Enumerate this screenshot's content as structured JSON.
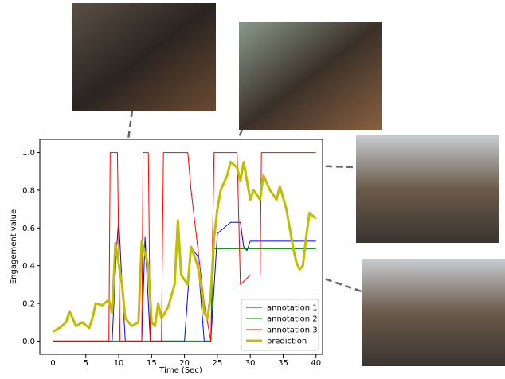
{
  "chart_data": {
    "type": "line",
    "x_label": "Time (Sec)",
    "y_label": "Engagement value",
    "xlim": [
      -2,
      41
    ],
    "ylim": [
      -0.07,
      1.07
    ],
    "xticks": [
      0,
      5,
      10,
      15,
      20,
      25,
      30,
      35,
      40
    ],
    "yticks": [
      {
        "value": 0,
        "label": "0.0"
      },
      0.2,
      0.4,
      0.6,
      0.8,
      {
        "value": 1,
        "label": "1.0"
      }
    ],
    "grid": false,
    "legend": "lower right",
    "series": [
      {
        "name": "annotation 1",
        "color": "#0000ff",
        "width": 1,
        "x": [
          0,
          9,
          9.6,
          10,
          10.5,
          11,
          13.5,
          14,
          14.8,
          20,
          21,
          22,
          23,
          24,
          25,
          27,
          28.5,
          29,
          29.5,
          30,
          40
        ],
        "values": [
          0,
          0,
          0.45,
          0.65,
          0.3,
          0,
          0,
          0.55,
          0,
          0,
          0.5,
          0.45,
          0,
          0,
          0.57,
          0.63,
          0.63,
          0.5,
          0.48,
          0.53,
          0.53
        ]
      },
      {
        "name": "annotation 2",
        "color": "#008000",
        "width": 1,
        "x": [
          0,
          24,
          24.5,
          40
        ],
        "values": [
          0,
          0,
          0.49,
          0.49
        ]
      },
      {
        "name": "annotation 3",
        "color": "#ff0000",
        "width": 1,
        "x": [
          0,
          8.5,
          8.7,
          9.8,
          10.2,
          13.5,
          13.7,
          14.5,
          14.8,
          16.5,
          16.8,
          20.5,
          21,
          22,
          23,
          24,
          24.5,
          28,
          28.5,
          30,
          31.5,
          31.7,
          40
        ],
        "values": [
          0,
          0,
          1,
          1,
          0,
          0,
          1,
          1,
          0,
          0,
          1,
          1,
          0.8,
          0.5,
          0.2,
          0,
          1,
          1,
          0.3,
          0.35,
          0.35,
          1,
          1
        ]
      },
      {
        "name": "prediction",
        "color": "#bfbf00",
        "width": 3,
        "x": [
          0,
          1,
          2,
          2.5,
          3.5,
          4.5,
          5.5,
          6,
          6.5,
          7.5,
          8.5,
          9,
          9.5,
          10.5,
          11,
          12,
          13,
          13.5,
          14.5,
          15,
          15.5,
          16,
          16.5,
          17.5,
          18.5,
          19,
          19.5,
          20.5,
          21,
          21.5,
          22,
          22.5,
          23,
          23.5,
          24,
          24.5,
          25,
          25.5,
          26.5,
          27,
          28,
          28.5,
          29,
          30,
          30.5,
          31.5,
          32,
          33,
          34,
          34.5,
          35.5,
          36,
          36.5,
          37,
          37.5,
          38,
          38.5,
          39,
          40
        ],
        "values": [
          0.05,
          0.07,
          0.1,
          0.16,
          0.08,
          0.1,
          0.07,
          0.12,
          0.2,
          0.19,
          0.22,
          0.15,
          0.52,
          0.3,
          0.12,
          0.08,
          0.1,
          0.53,
          0.4,
          0.1,
          0.08,
          0.2,
          0.12,
          0.18,
          0.3,
          0.64,
          0.35,
          0.3,
          0.5,
          0.45,
          0.4,
          0.3,
          0.15,
          0.12,
          0.25,
          0.55,
          0.7,
          0.8,
          0.88,
          0.95,
          0.92,
          0.85,
          0.95,
          0.75,
          0.8,
          0.75,
          0.88,
          0.8,
          0.75,
          0.82,
          0.7,
          0.6,
          0.5,
          0.42,
          0.38,
          0.4,
          0.55,
          0.68,
          0.65
        ]
      }
    ]
  }
}
